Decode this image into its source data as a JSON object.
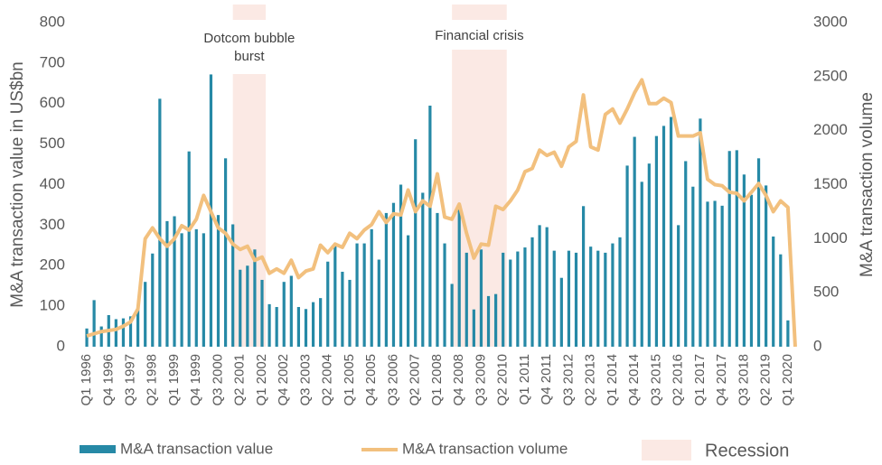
{
  "chart_data": {
    "type": "bar_line",
    "ylabel": "M&A transaction value in US$bn",
    "y2label": "M&A transaction volume",
    "categories": [
      "Q1 1996",
      null,
      null,
      "Q4 1996",
      null,
      null,
      "Q3 1997",
      null,
      null,
      "Q2 1998",
      null,
      null,
      "Q1 1999",
      null,
      null,
      "Q4 1999",
      null,
      null,
      "Q3 2000",
      null,
      null,
      "Q2 2001",
      null,
      null,
      "Q1 2002",
      null,
      null,
      "Q4 2002",
      null,
      null,
      "Q3 2003",
      null,
      null,
      "Q2 2004",
      null,
      null,
      "Q1 2005",
      null,
      null,
      "Q4 2005",
      null,
      null,
      "Q3 2006",
      null,
      null,
      "Q2 2007",
      null,
      null,
      "Q1 2008",
      null,
      null,
      "Q4 2008",
      null,
      null,
      "Q3 2009",
      null,
      null,
      "Q2 2010",
      null,
      null,
      "Q1 2011",
      null,
      null,
      "Q4 2011",
      null,
      null,
      "Q3 2012",
      null,
      null,
      "Q2 2013",
      null,
      null,
      "Q1 2014",
      null,
      null,
      "Q4 2014",
      null,
      null,
      "Q3 2015",
      null,
      null,
      "Q2 2016",
      null,
      null,
      "Q1 2017",
      null,
      null,
      "Q4 2017",
      null,
      null,
      "Q3 2018",
      null,
      null,
      "Q2 2019",
      null,
      null,
      "Q1 2020",
      null
    ],
    "series": [
      {
        "name": "M&A transaction value",
        "type": "bar",
        "color": "#2689a6",
        "values": [
          45,
          115,
          50,
          78,
          68,
          70,
          75,
          95,
          160,
          230,
          612,
          310,
          322,
          280,
          482,
          290,
          280,
          672,
          325,
          465,
          302,
          190,
          200,
          240,
          165,
          105,
          98,
          160,
          175,
          98,
          93,
          110,
          120,
          210,
          250,
          185,
          165,
          255,
          255,
          290,
          215,
          330,
          355,
          400,
          275,
          512,
          380,
          595,
          330,
          255,
          155,
          345,
          232,
          92,
          240,
          125,
          130,
          232,
          215,
          235,
          245,
          270,
          300,
          295,
          237,
          170,
          237,
          232,
          347,
          247,
          237,
          232,
          255,
          270,
          447,
          518,
          407,
          452,
          520,
          545,
          567,
          300,
          458,
          395,
          563,
          358,
          360,
          348,
          483,
          485,
          425,
          375,
          465,
          398,
          272,
          228,
          65,
          null
        ]
      },
      {
        "name": "M&A transaction volume",
        "type": "line",
        "axis": "y2",
        "color": "#f2c07e",
        "values": [
          100,
          120,
          140,
          150,
          160,
          190,
          230,
          350,
          1000,
          1100,
          1000,
          930,
          1000,
          1120,
          1080,
          1180,
          1400,
          1250,
          1100,
          1050,
          950,
          900,
          930,
          800,
          830,
          680,
          720,
          680,
          800,
          640,
          700,
          720,
          940,
          870,
          950,
          920,
          1050,
          1000,
          1080,
          1130,
          1250,
          1150,
          1230,
          1220,
          1450,
          1250,
          1350,
          1300,
          1600,
          1200,
          1180,
          1320,
          1050,
          820,
          950,
          940,
          1300,
          1270,
          1350,
          1450,
          1620,
          1650,
          1820,
          1770,
          1800,
          1670,
          1850,
          1900,
          2330,
          1850,
          1820,
          2150,
          2200,
          2070,
          2200,
          2350,
          2470,
          2250,
          2250,
          2300,
          2260,
          1950,
          1950,
          1950,
          1980,
          1550,
          1500,
          1490,
          1430,
          1420,
          1350,
          1430,
          1510,
          1400,
          1250,
          1350,
          1290,
          0
        ]
      }
    ],
    "recessions": [
      {
        "label": "Dotcom bubble burst",
        "start": "Q2 2001",
        "end": "Q1 2002"
      },
      {
        "label": "Financial crisis",
        "start": "Q4 2008",
        "end": "Q2 2010"
      }
    ],
    "recession_label": "Recession",
    "recession_color": "#fbe9e4",
    "ylim": [
      0,
      800
    ],
    "yticks": [
      0,
      100,
      200,
      300,
      400,
      500,
      600,
      700,
      800
    ],
    "y2lim": [
      0,
      3000
    ],
    "y2ticks": [
      0,
      500,
      1000,
      1500,
      2000,
      2500,
      3000
    ]
  }
}
